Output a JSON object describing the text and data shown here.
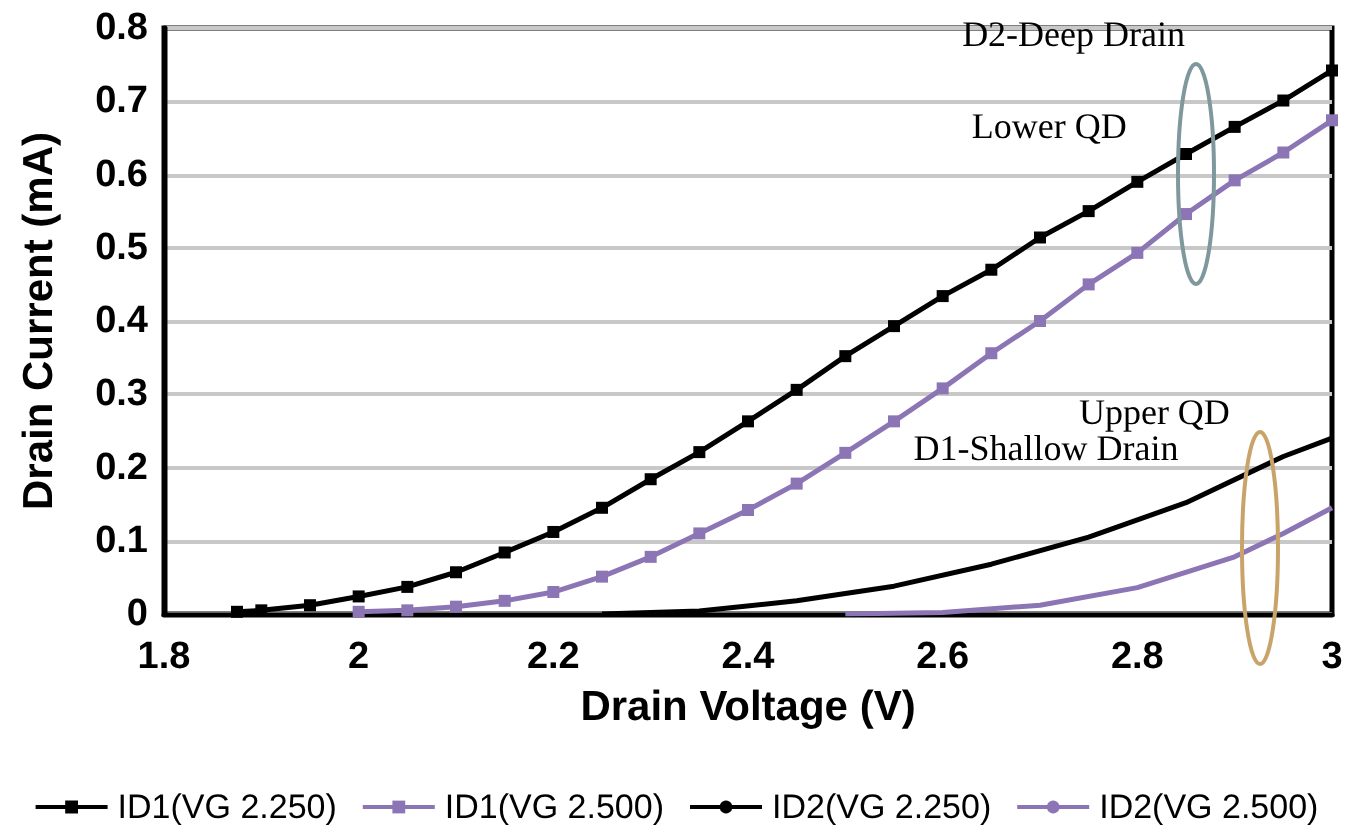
{
  "chart_data": {
    "type": "line",
    "xlabel": "Drain Voltage (V)",
    "ylabel": "Drain Current (mA)",
    "xlim": [
      1.8,
      3.0
    ],
    "xticks": [
      1.8,
      2,
      2.2,
      2.4,
      2.6,
      2.8,
      3
    ],
    "ylim": [
      0,
      0.8
    ],
    "yticks": [
      0,
      0.1,
      0.2,
      0.3,
      0.4,
      0.5,
      0.6,
      0.7,
      0.8
    ],
    "grid": "y",
    "legend": "bottom",
    "annotations": [
      "D2-Deep Drain",
      "Lower QD",
      "Upper QD",
      "D1-Shallow Drain"
    ],
    "series": [
      {
        "name": "ID1(VG 2.250)",
        "color": "#000000",
        "marker": "square",
        "x": [
          1.875,
          1.9,
          1.95,
          2.0,
          2.05,
          2.1,
          2.15,
          2.2,
          2.25,
          2.3,
          2.35,
          2.4,
          2.45,
          2.5,
          2.55,
          2.6,
          2.65,
          2.7,
          2.75,
          2.8,
          2.85,
          2.9,
          2.95,
          3.0
        ],
        "values": [
          0.003,
          0.005,
          0.012,
          0.024,
          0.037,
          0.057,
          0.084,
          0.112,
          0.145,
          0.184,
          0.221,
          0.263,
          0.306,
          0.352,
          0.393,
          0.434,
          0.47,
          0.514,
          0.55,
          0.59,
          0.628,
          0.665,
          0.701,
          0.742
        ]
      },
      {
        "name": "ID1(VG 2.500)",
        "color": "#8c75b5",
        "marker": "square",
        "x": [
          2.0,
          2.05,
          2.1,
          2.15,
          2.2,
          2.25,
          2.3,
          2.35,
          2.4,
          2.45,
          2.5,
          2.55,
          2.6,
          2.65,
          2.7,
          2.75,
          2.8,
          2.85,
          2.9,
          2.95,
          3.0
        ],
        "values": [
          0.003,
          0.005,
          0.01,
          0.018,
          0.03,
          0.051,
          0.078,
          0.11,
          0.142,
          0.178,
          0.22,
          0.263,
          0.308,
          0.356,
          0.4,
          0.45,
          0.493,
          0.546,
          0.592,
          0.63,
          0.674
        ]
      },
      {
        "name": "ID2(VG 2.250)",
        "color": "#000000",
        "marker": "none",
        "x": [
          2.25,
          2.35,
          2.45,
          2.55,
          2.65,
          2.75,
          2.85,
          2.95,
          3.0
        ],
        "values": [
          0,
          0.004,
          0.018,
          0.038,
          0.068,
          0.105,
          0.152,
          0.215,
          0.24
        ]
      },
      {
        "name": "ID2(VG 2.500)",
        "color": "#8c75b5",
        "marker": "none",
        "x": [
          2.5,
          2.6,
          2.7,
          2.8,
          2.9,
          2.95,
          3.0
        ],
        "values": [
          0,
          0.002,
          0.012,
          0.036,
          0.078,
          0.11,
          0.145
        ]
      }
    ]
  }
}
